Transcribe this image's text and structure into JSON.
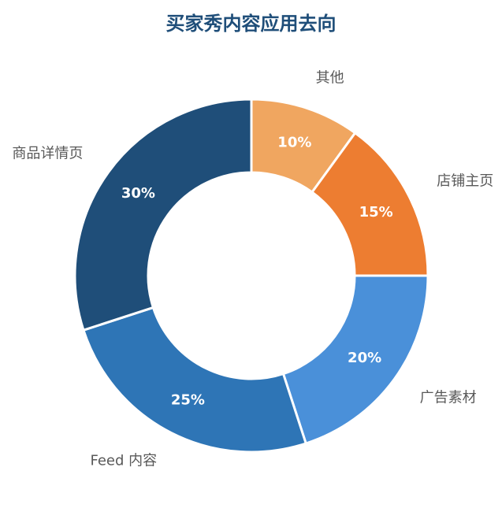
{
  "chart_data": {
    "type": "pie",
    "title": "买家秀内容应用去向",
    "categories": [
      "其他",
      "店铺主页",
      "广告素材",
      "Feed 内容",
      "商品详情页"
    ],
    "values": [
      10,
      15,
      20,
      25,
      30
    ],
    "value_labels": [
      "10%",
      "15%",
      "20%",
      "25%",
      "30%"
    ],
    "colors": [
      "#f0a660",
      "#ed7d31",
      "#4a90d9",
      "#2e75b6",
      "#1f4e79"
    ],
    "donut": true,
    "legend": "none"
  }
}
